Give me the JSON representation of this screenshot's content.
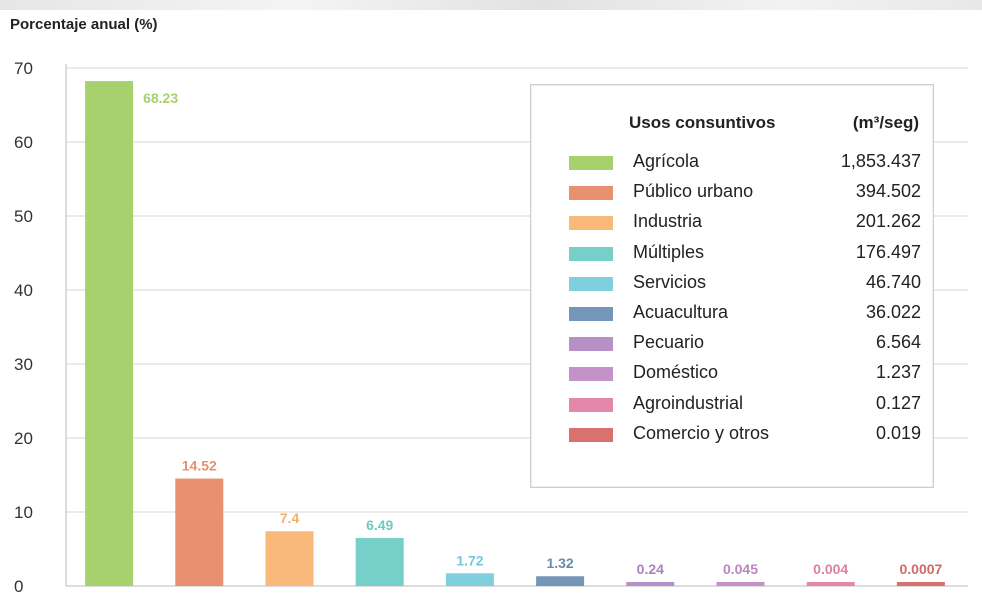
{
  "chart_data": {
    "type": "bar",
    "ylabel": "Porcentaje anual (%)",
    "ylim": [
      0,
      70
    ],
    "yticks": [
      0,
      10,
      20,
      30,
      40,
      50,
      60,
      70
    ],
    "grid": true,
    "categories": [
      "Agrícola",
      "Público urbano",
      "Industria",
      "Múltiples",
      "Servicios",
      "Acuacultura",
      "Pecuario",
      "Doméstico",
      "Agroindustrial",
      "Comercio y otros"
    ],
    "values": [
      68.23,
      14.52,
      7.4,
      6.49,
      1.72,
      1.32,
      0.24,
      0.045,
      0.004,
      0.0007
    ],
    "data_labels": [
      "68.23",
      "14.52",
      "7.4",
      "6.49",
      "1.72",
      "1.32",
      "0.24",
      "0.045",
      "0.004",
      "0.0007"
    ],
    "colors": [
      "#a6d16d",
      "#e8906f",
      "#f8b97a",
      "#76cfc8",
      "#7fcfdf",
      "#7496b8",
      "#b591c8",
      "#c491c8",
      "#e388aa",
      "#d9726e"
    ],
    "label_colors": [
      "#a6d16d",
      "#e8906f",
      "#f3b06a",
      "#6fc9c2",
      "#74c8dc",
      "#6a8bac",
      "#a982c0",
      "#b986c0",
      "#dd7ea2",
      "#d06a66"
    ],
    "legend": {
      "title": "Usos consuntivos",
      "unit": "(m³/seg)",
      "position": "top-right",
      "values": [
        "1,853.437",
        "394.502",
        "201.262",
        "176.497",
        "46.740",
        "36.022",
        "6.564",
        "1.237",
        "0.127",
        "0.019"
      ]
    }
  }
}
